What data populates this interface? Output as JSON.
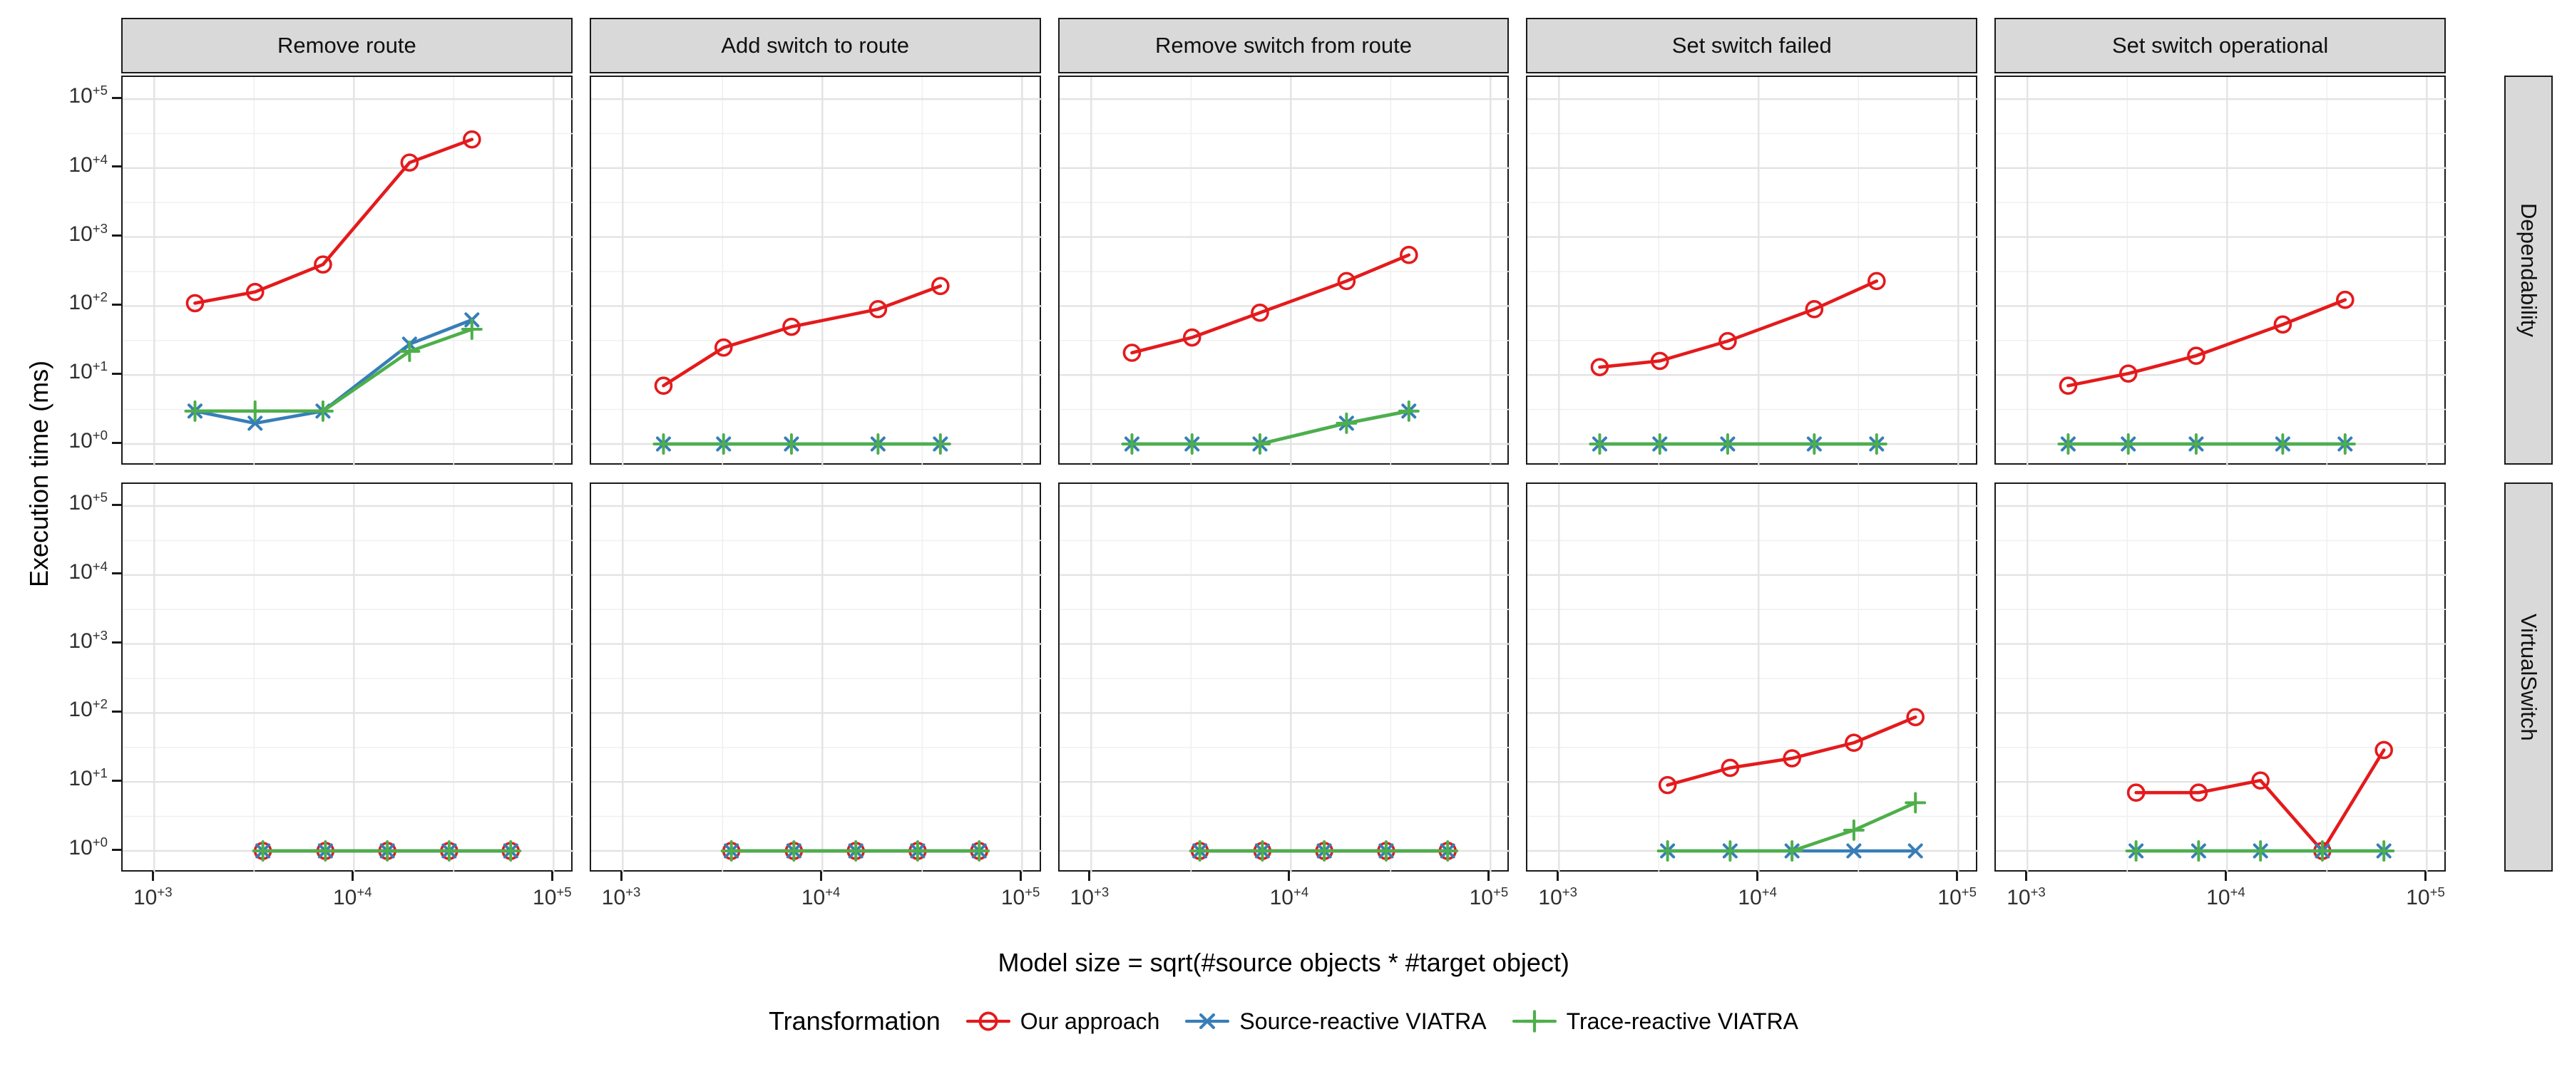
{
  "chart_data": {
    "type": "line",
    "title": "",
    "xlabel": "Model size = sqrt(#source objects * #target object)",
    "ylabel": "Execution time (ms)",
    "legend_title": "Transformation",
    "legend_position": "bottom",
    "grid": "on",
    "x_scale": "log10",
    "y_scale": "log10",
    "x_tick_exponents": [
      3,
      4,
      5
    ],
    "y_tick_exponents": [
      0,
      1,
      2,
      3,
      4,
      5
    ],
    "xlim": [
      1000,
      100000
    ],
    "ylim": [
      1,
      100000
    ],
    "facets": {
      "col_labels": [
        "Remove route",
        "Add switch to route",
        "Remove switch from route",
        "Set switch failed",
        "Set switch operational"
      ],
      "row_labels": [
        "Dependability",
        "VirtualSwitch"
      ]
    },
    "series": [
      {
        "key": "our_approach",
        "name": "Our approach",
        "color": "#E41A1C",
        "marker": "circle"
      },
      {
        "key": "source_reactive_viatra",
        "name": "Source-reactive VIATRA",
        "color": "#377EB8",
        "marker": "x"
      },
      {
        "key": "trace_reactive_viatra",
        "name": "Trace-reactive VIATRA",
        "color": "#4DAF4A",
        "marker": "plus"
      }
    ],
    "rows": [
      {
        "label": "Dependability",
        "x": [
          1600,
          3200,
          7000,
          19000,
          39000
        ],
        "panels": [
          {
            "col": "Remove route",
            "our_approach": [
              110,
              160,
              400,
              12000,
              26000
            ],
            "source_reactive_viatra": [
              3,
              2,
              3,
              28,
              63
            ],
            "trace_reactive_viatra": [
              3,
              3,
              3,
              22,
              46
            ]
          },
          {
            "col": "Add switch to route",
            "our_approach": [
              7,
              25,
              50,
              90,
              195
            ],
            "source_reactive_viatra": [
              1,
              1,
              1,
              1,
              1
            ],
            "trace_reactive_viatra": [
              1,
              1,
              1,
              1,
              1
            ]
          },
          {
            "col": "Remove switch from route",
            "our_approach": [
              21,
              35,
              80,
              230,
              550
            ],
            "source_reactive_viatra": [
              1,
              1,
              1,
              2,
              3
            ],
            "trace_reactive_viatra": [
              1,
              1,
              1,
              2,
              3
            ]
          },
          {
            "col": "Set switch failed",
            "our_approach": [
              13,
              16,
              31,
              90,
              230
            ],
            "source_reactive_viatra": [
              1,
              1,
              1,
              1,
              1
            ],
            "trace_reactive_viatra": [
              1,
              1,
              1,
              1,
              1
            ]
          },
          {
            "col": "Set switch operational",
            "our_approach": [
              7,
              10.5,
              19,
              54,
              123
            ],
            "source_reactive_viatra": [
              1,
              1,
              1,
              1,
              1
            ],
            "trace_reactive_viatra": [
              1,
              1,
              1,
              1,
              1
            ]
          }
        ]
      },
      {
        "label": "VirtualSwitch",
        "x": [
          3500,
          7200,
          14700,
          30000,
          61000
        ],
        "panels": [
          {
            "col": "Remove route",
            "our_approach": [
              1,
              1,
              1,
              1,
              1
            ],
            "source_reactive_viatra": [
              1,
              1,
              1,
              1,
              1
            ],
            "trace_reactive_viatra": [
              1,
              1,
              1,
              1,
              1
            ]
          },
          {
            "col": "Add switch to route",
            "our_approach": [
              1,
              1,
              1,
              1,
              1
            ],
            "source_reactive_viatra": [
              1,
              1,
              1,
              1,
              1
            ],
            "trace_reactive_viatra": [
              1,
              1,
              1,
              1,
              1
            ]
          },
          {
            "col": "Remove switch from route",
            "our_approach": [
              1,
              1,
              1,
              1,
              1
            ],
            "source_reactive_viatra": [
              1,
              1,
              1,
              1,
              1
            ],
            "trace_reactive_viatra": [
              1,
              1,
              1,
              1,
              1
            ]
          },
          {
            "col": "Set switch failed",
            "our_approach": [
              9,
              16,
              22,
              37,
              87
            ],
            "source_reactive_viatra": [
              1,
              1,
              1,
              1,
              1
            ],
            "trace_reactive_viatra": [
              1,
              1,
              1,
              2,
              5
            ]
          },
          {
            "col": "Set switch operational",
            "our_approach": [
              7,
              7,
              10.5,
              1,
              29
            ],
            "source_reactive_viatra": [
              1,
              1,
              1,
              1,
              1
            ],
            "trace_reactive_viatra": [
              1,
              1,
              1,
              1,
              1
            ]
          }
        ]
      }
    ]
  }
}
